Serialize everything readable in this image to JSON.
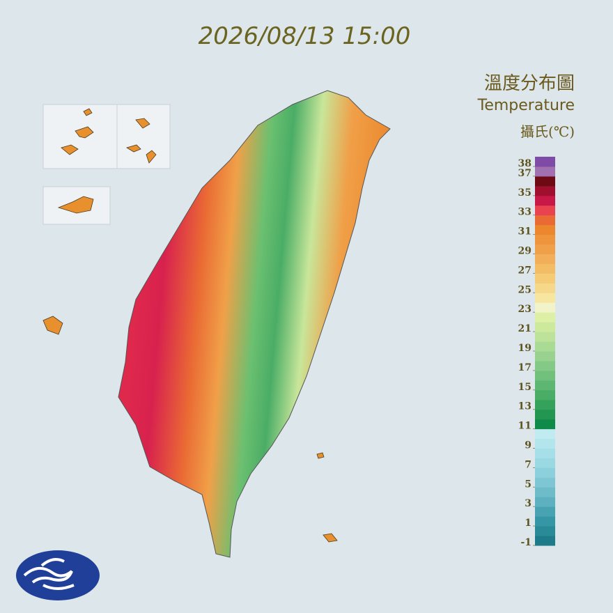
{
  "timestamp": "2026/08/13 15:00",
  "legend": {
    "title_zh": "溫度分布圖",
    "title_en": "Temperature",
    "unit": "攝氏(℃)",
    "lim": [
      -1,
      39
    ],
    "ticks": [
      38,
      37,
      35,
      33,
      31,
      29,
      27,
      25,
      23,
      21,
      19,
      17,
      15,
      13,
      11,
      9,
      7,
      5,
      3,
      1,
      -1
    ],
    "colors": [
      "#1e7b8a",
      "#2a8a98",
      "#3596a6",
      "#47a3b2",
      "#5cb0bf",
      "#6ebcca",
      "#7ec6d3",
      "#8cd0db",
      "#9ad8e2",
      "#a6dfe7",
      "#b2e5ec",
      "#c0ebf0",
      "#0f8a48",
      "#239652",
      "#35a25c",
      "#4aad66",
      "#5db772",
      "#71c07c",
      "#85c986",
      "#99d290",
      "#aadb94",
      "#bde39a",
      "#cdea9c",
      "#ddf0a6",
      "#f1f4c8",
      "#f7e6a0",
      "#f6d88a",
      "#f5cb76",
      "#f3bd66",
      "#f2ae58",
      "#f0a048",
      "#ee943c",
      "#ec872e",
      "#ea6a34",
      "#e8434e",
      "#c81848",
      "#a0102e",
      "#6e0a14",
      "#a070b0",
      "#7e4ca6"
    ]
  }
}
